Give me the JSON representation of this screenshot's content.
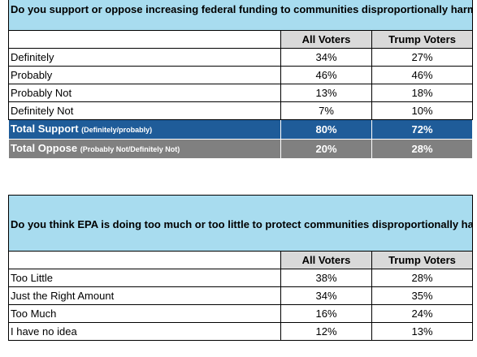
{
  "table1": {
    "title": "Do you support or oppose increasing federal funding to communities disproportionally harmed by air and water pollution?",
    "headers": [
      "All Voters",
      "Trump Voters"
    ],
    "rows": [
      {
        "label": "Definitely",
        "all": "34%",
        "trump": "27%"
      },
      {
        "label": "Probably",
        "all": "46%",
        "trump": "46%"
      },
      {
        "label": "Probably Not",
        "all": "13%",
        "trump": "18%"
      },
      {
        "label": "Definitely Not",
        "all": "7%",
        "trump": "10%"
      }
    ],
    "support": {
      "label": "Total Support",
      "note": "(Definitely/probably)",
      "all": "80%",
      "trump": "72%"
    },
    "oppose": {
      "label": "Total Oppose",
      "note": "(Probably Not/Definitely Not)",
      "all": "20%",
      "trump": "28%"
    }
  },
  "table2": {
    "title": "Do you think EPA is doing too much or too little to protect communities disproportionally harmed by air and water pollution?",
    "headers": [
      "All Voters",
      "Trump Voters"
    ],
    "rows": [
      {
        "label": "Too Little",
        "all": "38%",
        "trump": "28%"
      },
      {
        "label": "Just the Right Amount",
        "all": "34%",
        "trump": "35%"
      },
      {
        "label": "Too Much",
        "all": "16%",
        "trump": "24%"
      },
      {
        "label": "I have no idea",
        "all": "12%",
        "trump": "13%"
      }
    ]
  }
}
